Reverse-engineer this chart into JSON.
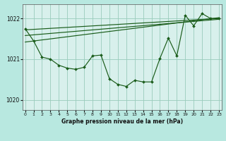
{
  "title": "Graphe pression niveau de la mer (hPa)",
  "bg_color": "#b8e8e0",
  "plot_bg_color": "#d8f0ec",
  "grid_color": "#99ccbb",
  "line_color": "#1a5c1a",
  "marker_color": "#1a5c1a",
  "xlim": [
    -0.3,
    23.3
  ],
  "ylim": [
    1019.75,
    1022.35
  ],
  "yticks": [
    1020,
    1021,
    1022
  ],
  "xticks": [
    0,
    1,
    2,
    3,
    4,
    5,
    6,
    7,
    8,
    9,
    10,
    11,
    12,
    13,
    14,
    15,
    16,
    17,
    18,
    19,
    20,
    21,
    22,
    23
  ],
  "main_data": [
    1021.75,
    1021.45,
    1021.05,
    1021.0,
    1020.85,
    1020.78,
    1020.75,
    1020.8,
    1021.08,
    1021.1,
    1020.52,
    1020.38,
    1020.33,
    1020.48,
    1020.44,
    1020.44,
    1021.02,
    1021.52,
    1021.08,
    1022.08,
    1021.82,
    1022.12,
    1022.0,
    1022.0
  ],
  "trend1_x": [
    0,
    23
  ],
  "trend1_y": [
    1021.72,
    1022.0
  ],
  "trend2_x": [
    0,
    23
  ],
  "trend2_y": [
    1021.58,
    1021.98
  ],
  "trend3_x": [
    0,
    23
  ],
  "trend3_y": [
    1021.42,
    1022.02
  ],
  "figwidth": 3.2,
  "figheight": 2.0,
  "dpi": 100
}
